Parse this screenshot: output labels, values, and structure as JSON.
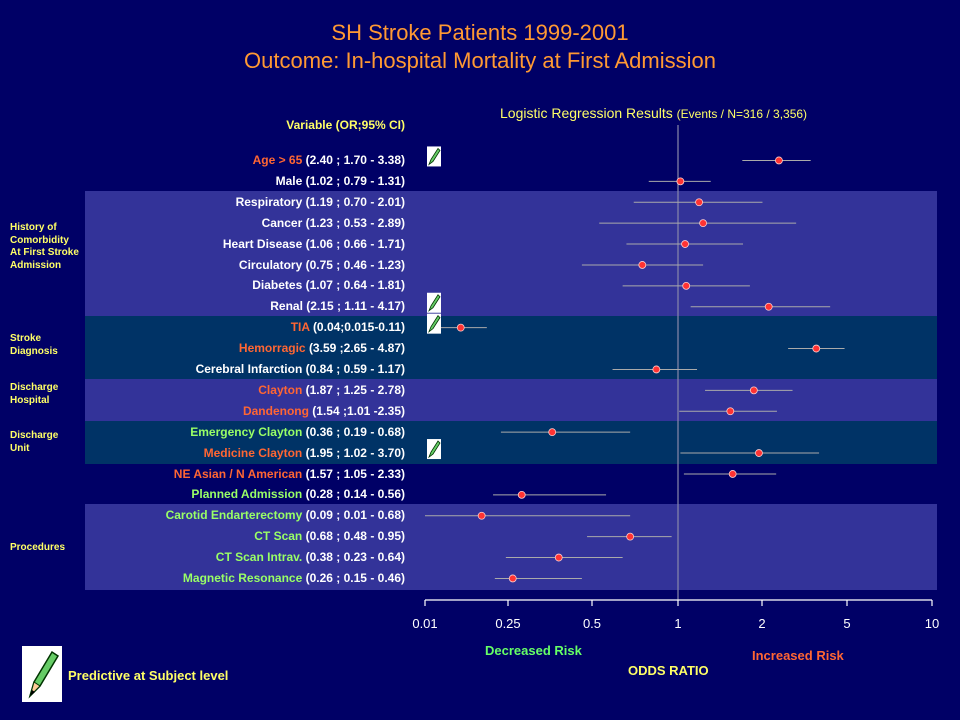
{
  "title_line1": "SH Stroke Patients 1999-2001",
  "title_line2": "Outcome: In-hospital Mortality at First Admission",
  "regression_title": "Logistic Regression Results",
  "regression_subtitle": "(Events / N=316 / 3,356)",
  "variable_header": "Variable (OR;95% CI)",
  "groups": [
    {
      "id": "comorbidity",
      "label": "History of Comorbidity At First Stroke Admission"
    },
    {
      "id": "diagnosis",
      "label": "Stroke Diagnosis"
    },
    {
      "id": "hospital",
      "label": "Discharge Hospital"
    },
    {
      "id": "unit",
      "label": "Discharge Unit"
    },
    {
      "id": "procedures",
      "label": "Procedures"
    }
  ],
  "colors": {
    "background": "#000066",
    "band_purple": "#333399",
    "band_teal": "#003366",
    "title": "#ff9933",
    "header": "#ffff66",
    "name_orange": "#ff6633",
    "name_green": "#99ff66",
    "name_white": "#ffffff",
    "point": "#ff3333",
    "ci_line": "#aaaaaa",
    "decreased": "#66ff66",
    "increased": "#ff6633"
  },
  "chart_data": {
    "type": "forest",
    "x_scale": "log",
    "xlabel": "ODDS RATIO",
    "x_ticks": [
      "0.01",
      "0.25",
      "0.5",
      "1",
      "2",
      "5",
      "10"
    ],
    "reference_line": "1",
    "decreased_label": "Decreased Risk",
    "increased_label": "Increased Risk",
    "rows": [
      {
        "name": "Age > 65",
        "ci_text": "(2.40 ; 1.70 - 3.38)",
        "or": 2.4,
        "lo": 1.7,
        "hi": 3.38,
        "name_color": "orange",
        "pencil": true
      },
      {
        "name": "Male",
        "ci_text": "(1.02 ; 0.79 - 1.31)",
        "or": 1.02,
        "lo": 0.79,
        "hi": 1.31,
        "name_color": "white",
        "pencil": false
      },
      {
        "name": "Respiratory",
        "ci_text": "(1.19 ; 0.70 - 2.01)",
        "or": 1.19,
        "lo": 0.7,
        "hi": 2.01,
        "name_color": "white",
        "pencil": false
      },
      {
        "name": "Cancer",
        "ci_text": "(1.23 ; 0.53 - 2.89)",
        "or": 1.23,
        "lo": 0.53,
        "hi": 2.89,
        "name_color": "white",
        "pencil": false
      },
      {
        "name": "Heart Disease ",
        "ci_text": "(1.06 ; 0.66 - 1.71)",
        "or": 1.06,
        "lo": 0.66,
        "hi": 1.71,
        "name_color": "white",
        "pencil": false
      },
      {
        "name": "Circulatory",
        "ci_text": "(0.75 ; 0.46 - 1.23)",
        "or": 0.75,
        "lo": 0.46,
        "hi": 1.23,
        "name_color": "white",
        "pencil": false
      },
      {
        "name": "Diabetes",
        "ci_text": "(1.07 ; 0.64 - 1.81)",
        "or": 1.07,
        "lo": 0.64,
        "hi": 1.81,
        "name_color": "white",
        "pencil": false
      },
      {
        "name": "Renal",
        "ci_text": "(2.15 ; 1.11 - 4.17)",
        "or": 2.15,
        "lo": 1.11,
        "hi": 4.17,
        "name_color": "white",
        "pencil": true
      },
      {
        "name": "TIA",
        "ci_text": "(0.04;0.015-0.11)",
        "or": 0.04,
        "lo": 0.015,
        "hi": 0.11,
        "name_color": "orange",
        "pencil": true
      },
      {
        "name": "Hemorragic",
        "ci_text": "(3.59 ;2.65 - 4.87)",
        "or": 3.59,
        "lo": 2.65,
        "hi": 4.87,
        "name_color": "orange",
        "pencil": false
      },
      {
        "name": "Cerebral Infarction",
        "ci_text": "(0.84 ; 0.59 - 1.17)",
        "or": 0.84,
        "lo": 0.59,
        "hi": 1.17,
        "name_color": "white",
        "pencil": false
      },
      {
        "name": "Clayton",
        "ci_text": "(1.87 ; 1.25 - 2.78)",
        "or": 1.87,
        "lo": 1.25,
        "hi": 2.78,
        "name_color": "orange",
        "pencil": false
      },
      {
        "name": "Dandenong ",
        "ci_text": "(1.54 ;1.01 -2.35)",
        "or": 1.54,
        "lo": 1.01,
        "hi": 2.35,
        "name_color": "orange",
        "pencil": false
      },
      {
        "name": "Emergency Clayton",
        "ci_text": "(0.36 ; 0.19 - 0.68)",
        "or": 0.36,
        "lo": 0.19,
        "hi": 0.68,
        "name_color": "green",
        "pencil": false
      },
      {
        "name": "Medicine Clayton",
        "ci_text": "(1.95 ; 1.02 - 3.70)",
        "or": 1.95,
        "lo": 1.02,
        "hi": 3.7,
        "name_color": "orange",
        "pencil": true
      },
      {
        "name": "NE Asian /  N American",
        "ci_text": "(1.57 ; 1.05 - 2.33)",
        "or": 1.57,
        "lo": 1.05,
        "hi": 2.33,
        "name_color": "orange",
        "pencil": false
      },
      {
        "name": "Planned Admission",
        "ci_text": "(0.28 ; 0.14 - 0.56)",
        "or": 0.28,
        "lo": 0.14,
        "hi": 0.56,
        "name_color": "green",
        "pencil": false
      },
      {
        "name": "Carotid Endarterectomy",
        "ci_text": "(0.09 ; 0.01 - 0.68)",
        "or": 0.09,
        "lo": 0.01,
        "hi": 0.68,
        "name_color": "green",
        "pencil": false
      },
      {
        "name": "CT Scan",
        "ci_text": "(0.68 ; 0.48 - 0.95)",
        "or": 0.68,
        "lo": 0.48,
        "hi": 0.95,
        "name_color": "green",
        "pencil": false
      },
      {
        "name": "CT Scan Intrav.",
        "ci_text": "(0.38 ; 0.23 - 0.64)",
        "or": 0.38,
        "lo": 0.23,
        "hi": 0.64,
        "name_color": "green",
        "pencil": false
      },
      {
        "name": "Magnetic Resonance",
        "ci_text": "(0.26 ; 0.15 - 0.46)",
        "or": 0.26,
        "lo": 0.15,
        "hi": 0.46,
        "name_color": "green",
        "pencil": false
      }
    ]
  },
  "legend_text": "Predictive at Subject level"
}
